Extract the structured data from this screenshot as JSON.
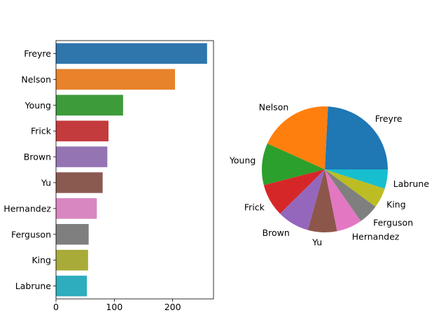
{
  "chart_data": [
    {
      "type": "bar",
      "orientation": "horizontal",
      "categories": [
        "Freyre",
        "Nelson",
        "Young",
        "Frick",
        "Brown",
        "Yu",
        "Hernandez",
        "Ferguson",
        "King",
        "Labrune"
      ],
      "values": [
        259,
        204,
        115,
        90,
        88,
        80,
        70,
        56,
        55,
        53
      ],
      "xlim": [
        0,
        270
      ],
      "xticks": [
        "0",
        "100",
        "200"
      ],
      "xtick_values": [
        0,
        100,
        200
      ],
      "colors": [
        "#2f76ad",
        "#e8832b",
        "#3e9b3a",
        "#c43b3d",
        "#9474b3",
        "#8a5a51",
        "#d987c0",
        "#7f7f7f",
        "#a9ab38",
        "#2eadbf"
      ],
      "grid": false
    },
    {
      "type": "pie",
      "labels": [
        "Freyre",
        "Nelson",
        "Young",
        "Frick",
        "Brown",
        "Yu",
        "Hernandez",
        "Ferguson",
        "King",
        "Labrune"
      ],
      "values": [
        259,
        204,
        115,
        90,
        88,
        80,
        70,
        56,
        55,
        53
      ],
      "colors": [
        "#1f77b4",
        "#ff7f0e",
        "#2ca02c",
        "#d62728",
        "#9467bd",
        "#8c564b",
        "#e377c2",
        "#7f7f7f",
        "#bcbd22",
        "#17becf"
      ],
      "start_angle": 0,
      "direction": "counterclockwise"
    }
  ]
}
